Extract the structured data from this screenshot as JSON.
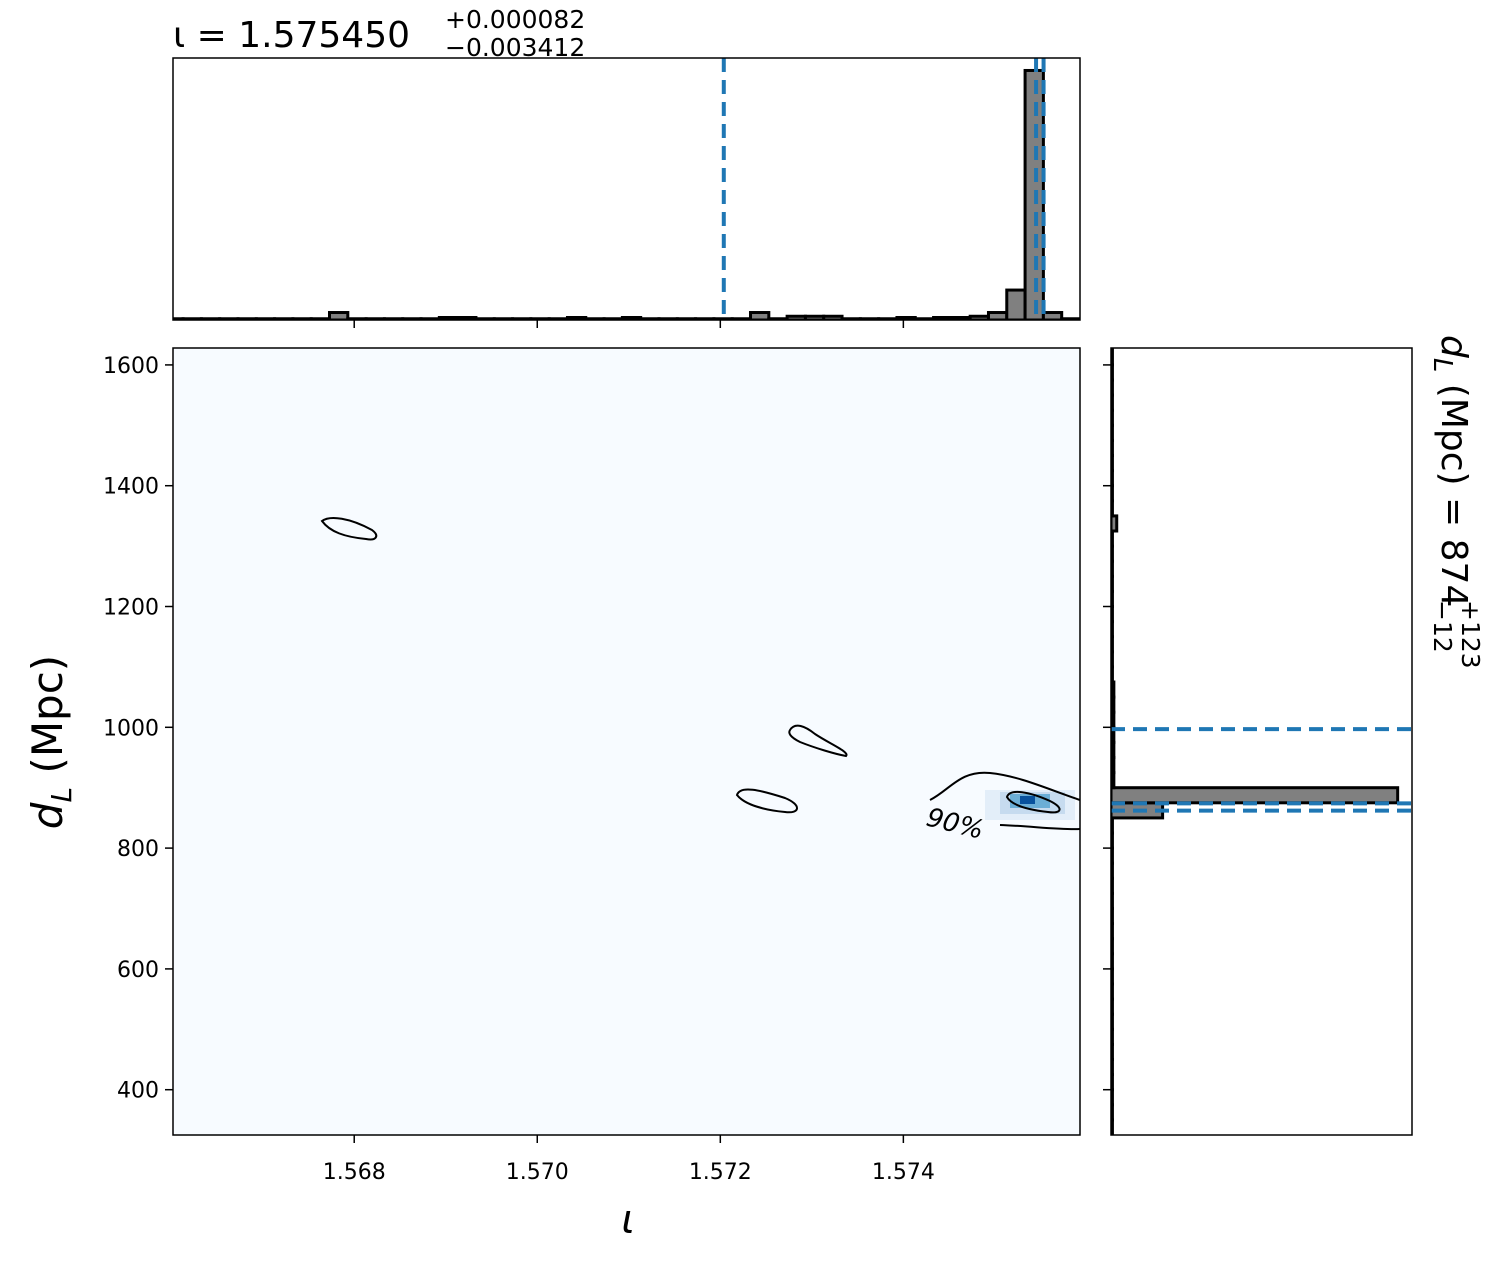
{
  "chart_data": [
    {
      "type": "histogram",
      "orientation": "vertical",
      "title": "ι = 1.575450",
      "title_sup": "+0.000082",
      "title_sub": "−0.003412",
      "bins": [
        1.56593,
        1.56613,
        1.56633,
        1.56653,
        1.56673,
        1.56693,
        1.56713,
        1.56733,
        1.56753,
        1.56773,
        1.56793,
        1.56813,
        1.56833,
        1.56853,
        1.56873,
        1.56893,
        1.56913,
        1.56933,
        1.56953,
        1.56973,
        1.56993,
        1.57013,
        1.57033,
        1.57053,
        1.57073,
        1.57093,
        1.57113,
        1.57133,
        1.57153,
        1.57173,
        1.57193,
        1.57213,
        1.57233,
        1.57253,
        1.57273,
        1.57293,
        1.57313,
        1.57333,
        1.57353,
        1.57373,
        1.57393,
        1.57413,
        1.57433,
        1.57453,
        1.57473,
        1.57493,
        1.57513,
        1.57533,
        1.57553,
        1.57573,
        1.57593
      ],
      "values": [
        0.5,
        0.5,
        0.5,
        0.5,
        0.5,
        0.5,
        0.5,
        0.5,
        0.5,
        3,
        0.5,
        0.5,
        0.5,
        0.5,
        0.5,
        1,
        1,
        0.5,
        0.5,
        0.5,
        0.5,
        0.5,
        1,
        0.5,
        0.5,
        1,
        0.5,
        0.5,
        0.5,
        0.5,
        0.5,
        0.5,
        3,
        0.5,
        1.5,
        1.5,
        1.5,
        0.5,
        0.5,
        0.5,
        1,
        0.5,
        1,
        1,
        1.5,
        3,
        12,
        100,
        3,
        0.5
      ],
      "color": "#808080",
      "edge_color": "#000000",
      "xlim": [
        1.56602,
        1.57593
      ],
      "ylim": [
        0,
        105
      ],
      "xticks": [
        1.568,
        1.57,
        1.572,
        1.574
      ],
      "quantiles": [
        1.572038,
        1.57545,
        1.575532
      ],
      "quantile_color": "#1f77b4"
    },
    {
      "type": "heatmap",
      "xlabel": "ι",
      "ylabel": "d",
      "ylabel_sub": "L",
      "ylabel_unit": " (Mpc)",
      "xlim": [
        1.56602,
        1.57593
      ],
      "ylim": [
        325,
        1628
      ],
      "xticks": [
        1.568,
        {
          "value": 1.57,
          "label": "1.570"
        },
        1.572,
        1.574
      ],
      "yticks": [
        400,
        600,
        800,
        1000,
        1200,
        1400,
        1600
      ],
      "contour_label": "90%"
    },
    {
      "type": "histogram",
      "orientation": "horizontal",
      "title": "d",
      "title_sub_l": "L",
      "title_rest": " (Mpc) = 874",
      "title_sup": "+123",
      "title_sub": "−12",
      "bins": [
        325,
        350,
        375,
        400,
        425,
        450,
        475,
        500,
        525,
        550,
        575,
        600,
        625,
        650,
        675,
        700,
        725,
        750,
        775,
        800,
        825,
        850,
        875,
        900,
        925,
        950,
        975,
        1000,
        1025,
        1050,
        1075,
        1100,
        1125,
        1150,
        1175,
        1200,
        1225,
        1250,
        1275,
        1300,
        1325,
        1350,
        1375,
        1400,
        1425,
        1450,
        1475,
        1500,
        1525,
        1550,
        1575,
        1600,
        1625
      ],
      "values": [
        0.5,
        0.5,
        0.5,
        0.5,
        0.5,
        0.5,
        0.5,
        0.5,
        0.5,
        0.5,
        0.5,
        0.5,
        0.5,
        0.5,
        0.5,
        0.5,
        0.5,
        0.5,
        0.5,
        0.5,
        0.5,
        18,
        100,
        1,
        1,
        1,
        1,
        1,
        1,
        1,
        0.5,
        0.5,
        0.5,
        0.5,
        0.5,
        0.5,
        0.5,
        0.5,
        0.5,
        0.5,
        2,
        0.5,
        0.5,
        0.5,
        0.5,
        0.5,
        0.5,
        0.5,
        0.5,
        0.5,
        0.5,
        0.5
      ],
      "color": "#808080",
      "edge_color": "#000000",
      "xlim": [
        0,
        105
      ],
      "ylim": [
        325,
        1628
      ],
      "yticks": [
        400,
        600,
        800,
        1000,
        1200,
        1400,
        1600
      ],
      "quantiles": [
        862,
        874,
        997
      ],
      "quantile_color": "#1f77b4"
    }
  ]
}
